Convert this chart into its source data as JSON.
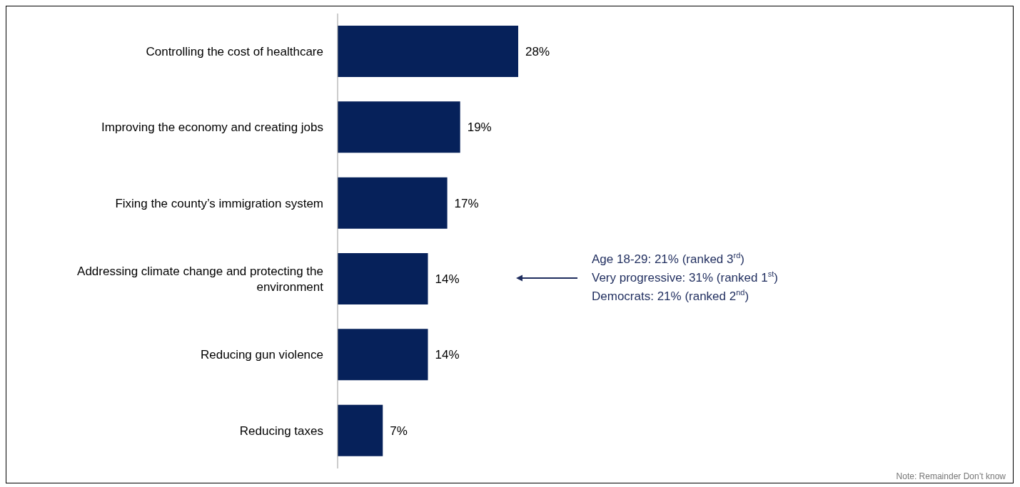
{
  "chart_data": {
    "type": "bar",
    "orientation": "horizontal",
    "categories": [
      "Controlling the cost of healthcare",
      "Improving the economy and creating jobs",
      "Fixing the county’s immigration system",
      "Addressing climate change and protecting the environment",
      "Reducing gun violence",
      "Reducing taxes"
    ],
    "values": [
      28,
      19,
      17,
      14,
      14,
      7
    ],
    "value_labels": [
      "28%",
      "19%",
      "17%",
      "14%",
      "14%",
      "7%"
    ],
    "color": "#06215a",
    "annotations": [
      "Age 18-29: 21% (ranked 3$^{rd}$)",
      "Very progressive: 31% (ranked 1$^{st}$)",
      "Democrats: 21% (ranked 2$^{nd}$)",
      "Note: Remainder Don’t know"
    ],
    "grid": false,
    "legend": false
  }
}
